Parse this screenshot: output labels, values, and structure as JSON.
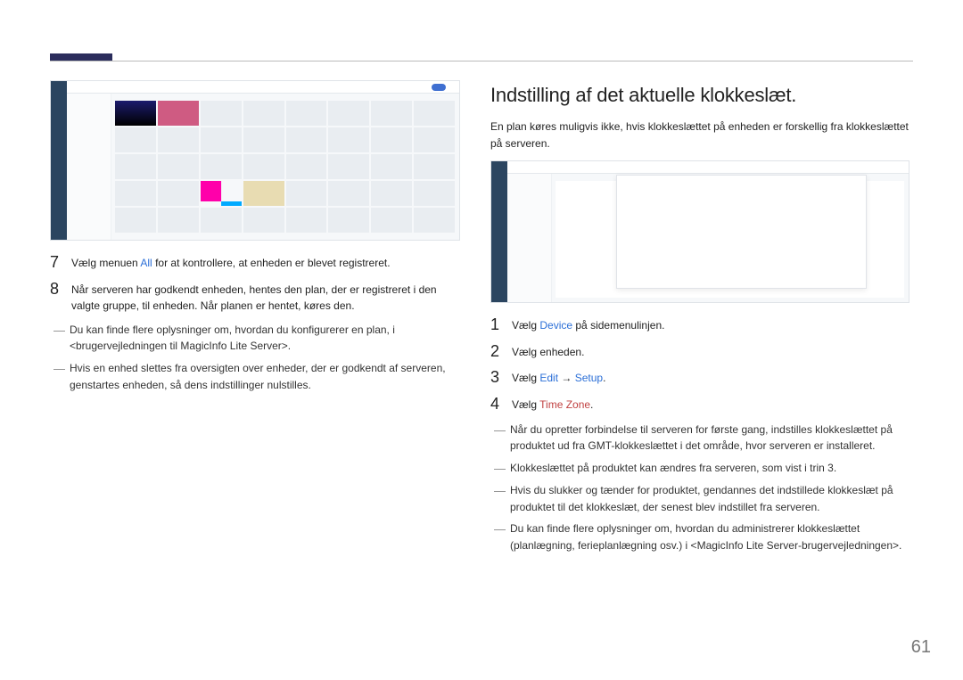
{
  "page_number": "61",
  "left": {
    "steps": [
      {
        "num": "7",
        "parts": [
          {
            "t": "Vælg menuen "
          },
          {
            "t": "All",
            "cls": "hl"
          },
          {
            "t": " for at kontrollere, at enheden er blevet registreret."
          }
        ]
      },
      {
        "num": "8",
        "parts": [
          {
            "t": "Når serveren har godkendt enheden, hentes den plan, der er registreret i den valgte gruppe, til enheden. Når planen er hentet, køres den."
          }
        ]
      }
    ],
    "dashes": [
      "Du kan finde flere oplysninger om, hvordan du konfigurerer en plan, i <brugervejledningen til MagicInfo Lite Server>.",
      "Hvis en enhed slettes fra oversigten over enheder, der er godkendt af serveren, genstartes enheden, så dens indstillinger nulstilles."
    ]
  },
  "right": {
    "heading": "Indstilling af det aktuelle klokkeslæt.",
    "intro": "En plan køres muligvis ikke, hvis klokkeslættet på enheden er forskellig fra klokkeslættet på serveren.",
    "steps": [
      {
        "num": "1",
        "parts": [
          {
            "t": "Vælg "
          },
          {
            "t": "Device",
            "cls": "hl"
          },
          {
            "t": " på sidemenulinjen."
          }
        ]
      },
      {
        "num": "2",
        "parts": [
          {
            "t": "Vælg enheden."
          }
        ]
      },
      {
        "num": "3",
        "parts": [
          {
            "t": "Vælg "
          },
          {
            "t": "Edit",
            "cls": "hl"
          },
          {
            "t": " → "
          },
          {
            "t": "Setup",
            "cls": "hl"
          },
          {
            "t": "."
          }
        ]
      },
      {
        "num": "4",
        "parts": [
          {
            "t": "Vælg "
          },
          {
            "t": "Time Zone",
            "cls": "hl-red"
          },
          {
            "t": "."
          }
        ]
      }
    ],
    "dashes": [
      "Når du opretter forbindelse til serveren for første gang, indstilles klokkeslættet på produktet ud fra GMT-klokkeslættet i det område, hvor serveren er installeret.",
      "Klokkeslættet på produktet kan ændres fra serveren, som vist i trin 3.",
      "Hvis du slukker og tænder for produktet, gendannes det indstillede klokkeslæt på produktet til det klokkeslæt, der senest blev indstillet fra serveren.",
      "Du kan finde flere oplysninger om, hvordan du administrerer klokkeslættet (planlægning, ferieplanlægning osv.) i <MagicInfo Lite Server-brugervejledningen>."
    ]
  }
}
